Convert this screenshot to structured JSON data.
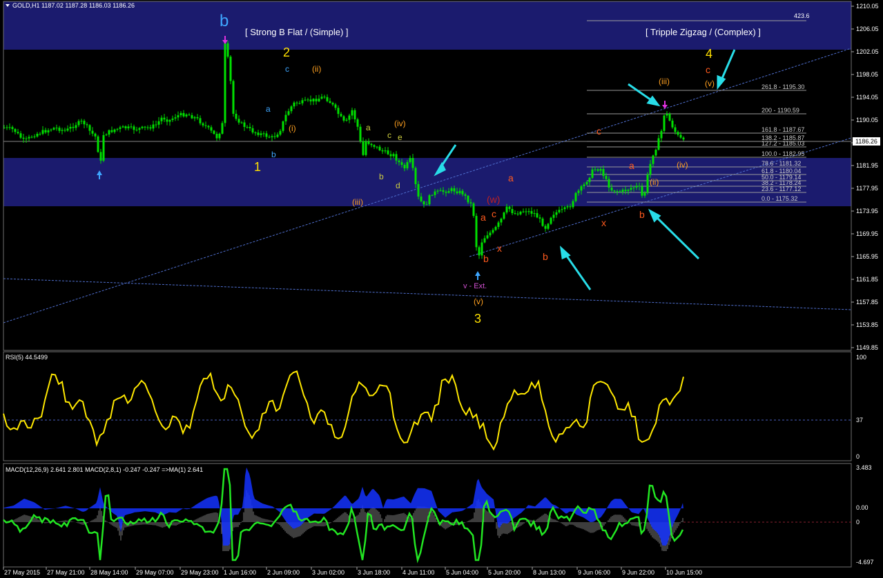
{
  "window": {
    "symbol_header": "GOLD,H1  1187.02 1187.28 1186.03 1186.26"
  },
  "price_axis": {
    "ticks": [
      "1210.05",
      "1206.05",
      "1202.05",
      "1198.05",
      "1194.05",
      "1190.05",
      "1185.95",
      "1181.95",
      "1177.95",
      "1173.95",
      "1169.95",
      "1165.95",
      "1161.85",
      "1157.85",
      "1153.85",
      "1149.85"
    ],
    "current_price": "1186.26"
  },
  "time_axis": {
    "ticks": [
      "27 May 2015",
      "27 May 21:00",
      "28 May 14:00",
      "29 May 07:00",
      "29 May 23:00",
      "1 Jun 16:00",
      "2 Jun 09:00",
      "3 Jun 02:00",
      "3 Jun 18:00",
      "4 Jun 11:00",
      "5 Jun 04:00",
      "5 Jun 20:00",
      "8 Jun 13:00",
      "9 Jun 06:00",
      "9 Jun 22:00",
      "10 Jun 15:00"
    ]
  },
  "annotations": {
    "left_title": "[ Strong B Flat / (Simple) ]",
    "right_title": "[ Tripple Zigzag / (Complex) ]",
    "ext_label": "v - Ext.",
    "top_fib": "423.6"
  },
  "fib_levels": [
    "261.8 - 1195.30",
    "200 - 1190.59",
    "161.8 - 1187.67",
    "138.2 - 1185.87",
    "127.2 - 1185.03",
    "100.0 - 1182.95",
    "78.6 - 1181.32",
    "61.8 - 1180.04",
    "50.0 - 1179.14",
    "38.2 - 1178.24",
    "23.6 - 1177.12",
    "0.0 - 1175.32"
  ],
  "wave_labels": [
    {
      "t": "b",
      "c": "#3ea6ff"
    },
    {
      "t": "2",
      "c": "#ffe000"
    },
    {
      "t": "1",
      "c": "#ffe000"
    },
    {
      "t": "3",
      "c": "#ffe000"
    },
    {
      "t": "4",
      "c": "#ffe000"
    },
    {
      "t": "c",
      "c": "#ff5a1e"
    },
    {
      "t": "(v)",
      "c": "#ffa020"
    },
    {
      "t": "(iii)",
      "c": "#ffa020"
    },
    {
      "t": "(ii)",
      "c": "#ffa020"
    },
    {
      "t": "(iv)",
      "c": "#ffa020"
    },
    {
      "t": "(iii)",
      "c": "#ffa020"
    },
    {
      "t": "(i)",
      "c": "#ffa020"
    },
    {
      "t": "(v)",
      "c": "#ffa020"
    },
    {
      "t": "(w)",
      "c": "#c02020"
    },
    {
      "t": "a",
      "c": "#ff5a1e"
    },
    {
      "t": "c",
      "c": "#ff5a1e"
    },
    {
      "t": "a",
      "c": "#ff5a1e"
    },
    {
      "t": "x",
      "c": "#ff5a1e"
    },
    {
      "t": "b",
      "c": "#ff5a1e"
    },
    {
      "t": "b",
      "c": "#ff5a1e"
    },
    {
      "t": "c",
      "c": "#ff5a1e"
    },
    {
      "t": "x",
      "c": "#ff5a1e"
    },
    {
      "t": "a",
      "c": "#ff5a1e"
    },
    {
      "t": "b",
      "c": "#ff5a1e"
    },
    {
      "t": "(iv)",
      "c": "#ffa020"
    },
    {
      "t": "(ii)",
      "c": "#ffa020"
    },
    {
      "t": "c",
      "c": "#3ea6ff"
    },
    {
      "t": "a",
      "c": "#3ea6ff"
    },
    {
      "t": "b",
      "c": "#3ea6ff"
    },
    {
      "t": "a",
      "c": "#d0d040"
    },
    {
      "t": "b",
      "c": "#d0d040"
    },
    {
      "t": "c",
      "c": "#d0d040"
    },
    {
      "t": "d",
      "c": "#d0d040"
    },
    {
      "t": "e",
      "c": "#d0d040"
    }
  ],
  "rsi": {
    "header": "RSI(5) 44.5499",
    "levels": [
      "100",
      "37",
      "0"
    ]
  },
  "macd": {
    "header": "MACD(12,26,9) 2.641 2.801  MACD(2,8,1) -0.247 -0.247  =>MA(1) 2.641",
    "levels": [
      "3.483",
      "0.00",
      "0",
      "-4.697"
    ]
  },
  "colors": {
    "background": "#000000",
    "zone": "#1b1b6e",
    "candle": "#00e000",
    "rsi_line": "#ffe800",
    "macd_blue": "#1432ff",
    "macd_green": "#22e622",
    "trendline": "#5070d0",
    "arrow": "#28dde8",
    "fib": "#a0a0a0"
  }
}
